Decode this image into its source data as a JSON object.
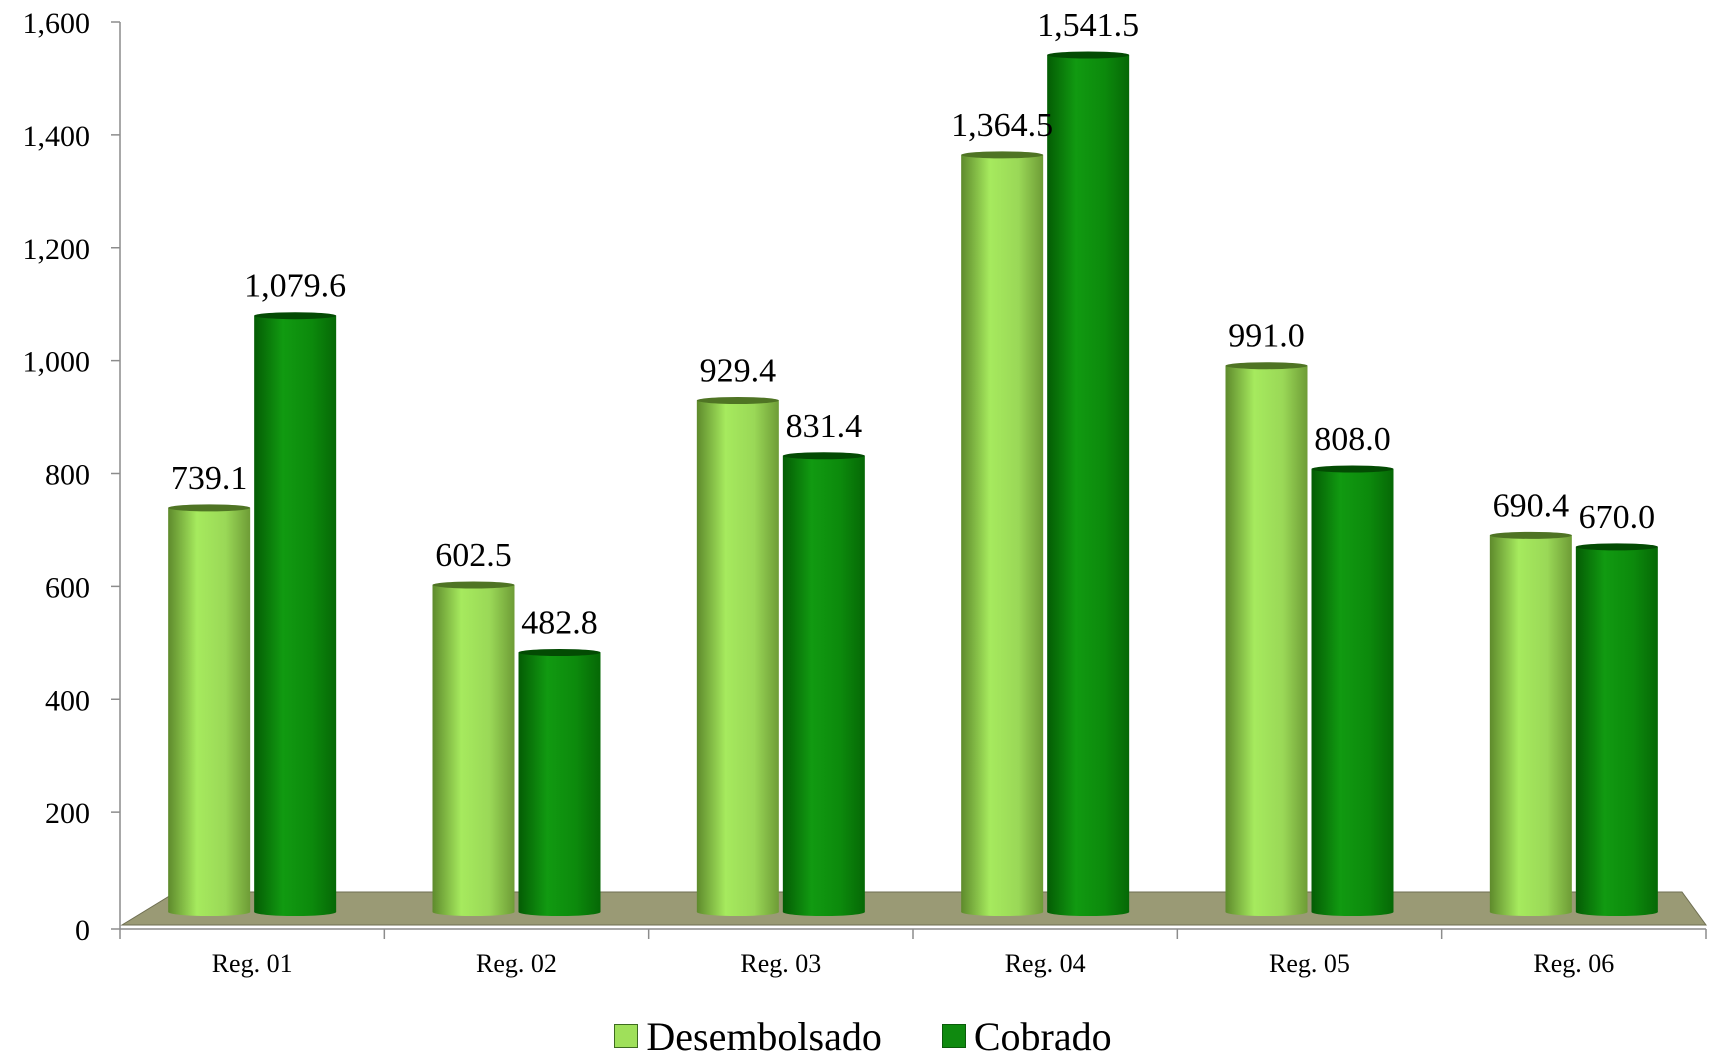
{
  "chart_data": {
    "type": "bar",
    "categories": [
      "Reg. 01",
      "Reg. 02",
      "Reg. 03",
      "Reg. 04",
      "Reg. 05",
      "Reg. 06"
    ],
    "series": [
      {
        "name": "Desembolsado",
        "values": [
          739.1,
          602.5,
          929.4,
          1364.5,
          991.0,
          690.4
        ],
        "labels": [
          "739.1",
          "602.5",
          "929.4",
          "1,364.5",
          "991.0",
          "690.4"
        ],
        "color": "#9fe05a"
      },
      {
        "name": "Cobrado",
        "values": [
          1079.6,
          482.8,
          831.4,
          1541.5,
          808.0,
          670.0
        ],
        "labels": [
          "1,079.6",
          "482.8",
          "831.4",
          "1,541.5",
          "808.0",
          "670.0"
        ],
        "color": "#0f8a0f"
      }
    ],
    "ylim": [
      0,
      1600
    ],
    "yticks": [
      0,
      200,
      400,
      600,
      800,
      1000,
      1200,
      1400,
      1600
    ],
    "ytick_labels": [
      "0",
      "200",
      "400",
      "600",
      "800",
      "1,000",
      "1,200",
      "1,400",
      "1,600"
    ],
    "legend_position": "bottom",
    "grid": false,
    "floor_color": "#9a9a75"
  },
  "legend": {
    "items": [
      {
        "label": "Desembolsado",
        "color": "#9fe05a"
      },
      {
        "label": "Cobrado",
        "color": "#0f8a0f"
      }
    ]
  }
}
